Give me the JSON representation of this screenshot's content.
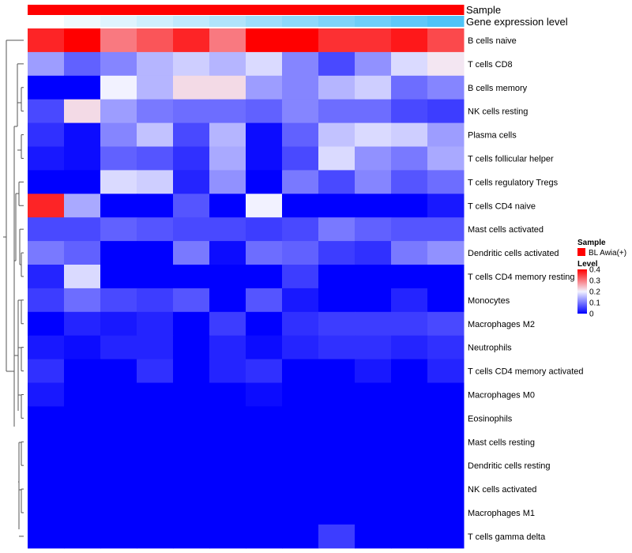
{
  "chart_data": {
    "type": "heatmap",
    "annotations": [
      {
        "label": "Sample"
      },
      {
        "label": "Gene expression level"
      }
    ],
    "rows": [
      {
        "label": "B cells naive",
        "values": [
          0.37,
          0.4,
          0.3,
          0.33,
          0.37,
          0.3,
          0.4,
          0.4,
          0.36,
          0.36,
          0.38,
          0.34
        ]
      },
      {
        "label": "T cells CD8",
        "values": [
          0.13,
          0.08,
          0.11,
          0.15,
          0.17,
          0.15,
          0.18,
          0.11,
          0.06,
          0.12,
          0.18,
          0.21
        ]
      },
      {
        "label": "B cells memory",
        "values": [
          0.0,
          0.0,
          0.2,
          0.15,
          0.22,
          0.22,
          0.13,
          0.11,
          0.15,
          0.17,
          0.09,
          0.11
        ]
      },
      {
        "label": "NK cells resting",
        "values": [
          0.06,
          0.22,
          0.13,
          0.1,
          0.09,
          0.09,
          0.08,
          0.11,
          0.09,
          0.09,
          0.06,
          0.05
        ]
      },
      {
        "label": "Plasma cells",
        "values": [
          0.04,
          0.01,
          0.11,
          0.16,
          0.06,
          0.15,
          0.01,
          0.08,
          0.16,
          0.18,
          0.17,
          0.13
        ]
      },
      {
        "label": "T cells follicular helper",
        "values": [
          0.02,
          0.01,
          0.08,
          0.07,
          0.04,
          0.14,
          0.01,
          0.06,
          0.18,
          0.12,
          0.1,
          0.14
        ]
      },
      {
        "label": "T cells regulatory  Tregs",
        "values": [
          0.0,
          0.0,
          0.18,
          0.17,
          0.03,
          0.12,
          0.0,
          0.1,
          0.06,
          0.11,
          0.07,
          0.09
        ]
      },
      {
        "label": "T cells CD4 naive",
        "values": [
          0.37,
          0.14,
          0.0,
          0.0,
          0.07,
          0.0,
          0.2,
          0.0,
          0.0,
          0.0,
          0.0,
          0.02
        ]
      },
      {
        "label": "Mast cells activated",
        "values": [
          0.06,
          0.06,
          0.08,
          0.07,
          0.06,
          0.06,
          0.05,
          0.06,
          0.1,
          0.08,
          0.07,
          0.07
        ]
      },
      {
        "label": "Dendritic cells activated",
        "values": [
          0.1,
          0.08,
          0.0,
          0.0,
          0.1,
          0.01,
          0.09,
          0.08,
          0.05,
          0.04,
          0.1,
          0.12
        ]
      },
      {
        "label": "T cells CD4 memory resting",
        "values": [
          0.03,
          0.18,
          0.0,
          0.0,
          0.0,
          0.0,
          0.0,
          0.05,
          0.0,
          0.0,
          0.0,
          0.0
        ]
      },
      {
        "label": "Monocytes",
        "values": [
          0.05,
          0.09,
          0.06,
          0.05,
          0.07,
          0.0,
          0.07,
          0.02,
          0.0,
          0.0,
          0.03,
          0.0
        ]
      },
      {
        "label": "Macrophages M2",
        "values": [
          0.0,
          0.03,
          0.02,
          0.03,
          0.0,
          0.05,
          0.0,
          0.04,
          0.05,
          0.05,
          0.05,
          0.06
        ]
      },
      {
        "label": "Neutrophils",
        "values": [
          0.02,
          0.01,
          0.03,
          0.03,
          0.0,
          0.03,
          0.01,
          0.03,
          0.04,
          0.04,
          0.03,
          0.04
        ]
      },
      {
        "label": "T cells CD4 memory activated",
        "values": [
          0.04,
          0.0,
          0.0,
          0.04,
          0.0,
          0.03,
          0.04,
          0.0,
          0.0,
          0.02,
          0.0,
          0.03
        ]
      },
      {
        "label": "Macrophages M0",
        "values": [
          0.02,
          0.0,
          0.0,
          0.0,
          0.0,
          0.0,
          0.01,
          0.0,
          0.0,
          0.0,
          0.0,
          0.0
        ]
      },
      {
        "label": "Eosinophils",
        "values": [
          0.0,
          0.0,
          0.0,
          0.0,
          0.0,
          0.0,
          0.0,
          0.0,
          0.0,
          0.0,
          0.0,
          0.0
        ]
      },
      {
        "label": "Mast cells resting",
        "values": [
          0.0,
          0.0,
          0.0,
          0.0,
          0.0,
          0.0,
          0.0,
          0.0,
          0.0,
          0.0,
          0.0,
          0.0
        ]
      },
      {
        "label": "Dendritic cells resting",
        "values": [
          0.0,
          0.0,
          0.0,
          0.0,
          0.0,
          0.0,
          0.0,
          0.0,
          0.0,
          0.0,
          0.0,
          0.0
        ]
      },
      {
        "label": "NK cells activated",
        "values": [
          0.0,
          0.0,
          0.0,
          0.0,
          0.0,
          0.0,
          0.0,
          0.0,
          0.0,
          0.0,
          0.0,
          0.0
        ]
      },
      {
        "label": "Macrophages M1",
        "values": [
          0.0,
          0.0,
          0.0,
          0.0,
          0.0,
          0.0,
          0.0,
          0.0,
          0.0,
          0.0,
          0.0,
          0.0
        ]
      },
      {
        "label": "T cells gamma delta",
        "values": [
          0.0,
          0.0,
          0.0,
          0.0,
          0.0,
          0.0,
          0.0,
          0.0,
          0.05,
          0.0,
          0.0,
          0.0
        ]
      }
    ],
    "sample_annotation": [
      "BL Awia(+)",
      "BL Awia(+)",
      "BL Awia(+)",
      "BL Awia(+)",
      "BL Awia(+)",
      "BL Awia(+)",
      "BL Awia(+)",
      "BL Awia(+)",
      "BL Awia(+)",
      "BL Awia(+)",
      "BL Awia(+)",
      "BL Awia(+)"
    ],
    "expression_annotation": [
      0.0,
      0.09,
      0.18,
      0.27,
      0.36,
      0.45,
      0.55,
      0.64,
      0.73,
      0.82,
      0.91,
      1.0
    ],
    "expression_colors": {
      "low": "#ffffff",
      "high": "#4fc3f7"
    },
    "color_scale": {
      "stops": [
        {
          "value": 0.0,
          "color": "#0000ff"
        },
        {
          "value": 0.2,
          "color": "#f2f2ff"
        },
        {
          "value": 0.4,
          "color": "#ff0000"
        }
      ],
      "range": [
        0,
        0.4
      ]
    },
    "legends": {
      "sample": {
        "title": "Sample",
        "entries": [
          {
            "label": "BL Awia(+)",
            "color": "#ff0000"
          }
        ]
      },
      "level": {
        "title": "Level",
        "ticks": [
          "0.4",
          "0.3",
          "0.2",
          "0.1",
          "0"
        ],
        "tick_values": [
          0.4,
          0.3,
          0.2,
          0.1,
          0.0
        ]
      }
    }
  }
}
